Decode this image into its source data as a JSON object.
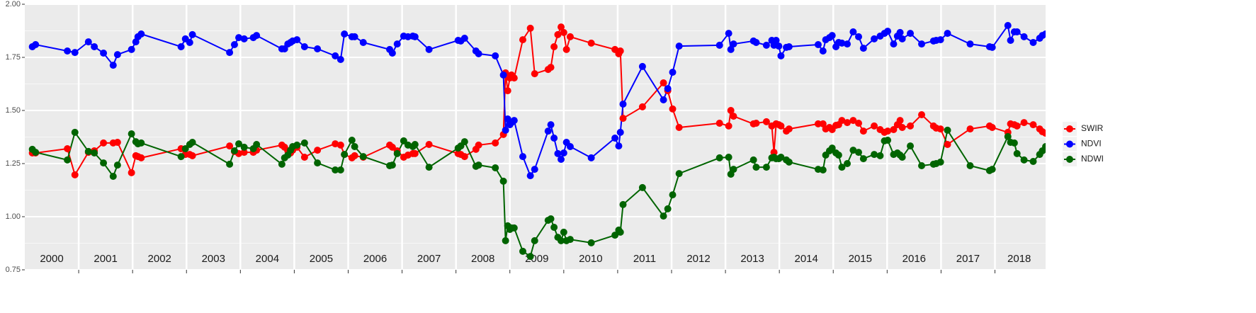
{
  "chart_data": {
    "type": "line",
    "markers": true,
    "grid": true,
    "legend": "right",
    "x": [
      2000.14,
      2000.2,
      2000.79,
      2000.93,
      2001.18,
      2001.29,
      2001.46,
      2001.64,
      2001.72,
      2001.98,
      2002.06,
      2002.1,
      2002.16,
      2002.9,
      2002.98,
      2003.06,
      2003.11,
      2003.8,
      2003.89,
      2003.97,
      2004.07,
      2004.24,
      2004.3,
      2004.77,
      2004.82,
      2004.88,
      2004.93,
      2004.97,
      2005.05,
      2005.19,
      2005.43,
      2005.76,
      2005.86,
      2005.93,
      2006.07,
      2006.12,
      2006.28,
      2006.77,
      2006.82,
      2006.91,
      2007.03,
      2007.11,
      2007.2,
      2007.24,
      2007.5,
      2008.04,
      2008.09,
      2008.16,
      2008.37,
      2008.42,
      2008.73,
      2008.88,
      2008.92,
      2008.96,
      2009.0,
      2009.03,
      2009.08,
      2009.24,
      2009.38,
      2009.46,
      2009.71,
      2009.76,
      2009.82,
      2009.89,
      2009.95,
      2010.0,
      2010.05,
      2010.12,
      2010.51,
      2010.95,
      2011.02,
      2011.05,
      2011.1,
      2011.46,
      2011.85,
      2011.93,
      2012.02,
      2012.14,
      2012.89,
      2013.06,
      2013.1,
      2013.15,
      2013.52,
      2013.57,
      2013.76,
      2013.86,
      2013.9,
      2013.94,
      2013.99,
      2014.03,
      2014.13,
      2014.18,
      2014.72,
      2014.81,
      2014.86,
      2014.93,
      2014.98,
      2015.05,
      2015.1,
      2015.16,
      2015.26,
      2015.37,
      2015.47,
      2015.56,
      2015.76,
      2015.87,
      2015.95,
      2016.01,
      2016.12,
      2016.19,
      2016.24,
      2016.28,
      2016.43,
      2016.64,
      2016.86,
      2016.91,
      2016.99,
      2017.12,
      2017.54,
      2017.9,
      2017.95,
      2018.24,
      2018.29,
      2018.36,
      2018.41,
      2018.54,
      2018.71,
      2018.83,
      2018.88,
      2018.94
    ],
    "series": [
      {
        "name": "SWIR",
        "color": "#ff0000",
        "values": [
          1.3,
          1.3,
          1.32,
          1.197,
          1.303,
          1.31,
          1.347,
          1.347,
          1.35,
          1.207,
          1.287,
          1.283,
          1.277,
          1.32,
          1.293,
          1.293,
          1.287,
          1.333,
          1.307,
          1.297,
          1.303,
          1.303,
          1.313,
          1.337,
          1.327,
          1.31,
          1.3,
          1.313,
          1.327,
          1.28,
          1.313,
          1.343,
          1.337,
          1.293,
          1.277,
          1.287,
          1.28,
          1.337,
          1.327,
          1.31,
          1.28,
          1.29,
          1.297,
          1.297,
          1.34,
          1.297,
          1.293,
          1.283,
          1.317,
          1.337,
          1.347,
          1.387,
          1.677,
          1.593,
          1.653,
          1.667,
          1.653,
          1.833,
          1.887,
          1.673,
          1.693,
          1.703,
          1.8,
          1.857,
          1.893,
          1.867,
          1.787,
          1.847,
          1.817,
          1.787,
          1.767,
          1.78,
          1.463,
          1.517,
          1.63,
          1.593,
          1.507,
          1.42,
          1.44,
          1.427,
          1.5,
          1.473,
          1.437,
          1.44,
          1.447,
          1.427,
          1.303,
          1.437,
          1.433,
          1.427,
          1.403,
          1.413,
          1.437,
          1.437,
          1.413,
          1.42,
          1.41,
          1.43,
          1.433,
          1.453,
          1.443,
          1.453,
          1.44,
          1.403,
          1.427,
          1.41,
          1.397,
          1.403,
          1.41,
          1.433,
          1.453,
          1.42,
          1.427,
          1.48,
          1.427,
          1.417,
          1.413,
          1.34,
          1.413,
          1.427,
          1.42,
          1.397,
          1.437,
          1.433,
          1.427,
          1.443,
          1.433,
          1.413,
          1.4,
          1.393
        ]
      },
      {
        "name": "NDVI",
        "color": "#0000ff",
        "values": [
          1.8,
          1.81,
          1.78,
          1.773,
          1.823,
          1.8,
          1.77,
          1.713,
          1.763,
          1.787,
          1.823,
          1.847,
          1.86,
          1.8,
          1.837,
          1.82,
          1.857,
          1.773,
          1.81,
          1.843,
          1.837,
          1.843,
          1.853,
          1.79,
          1.79,
          1.813,
          1.82,
          1.827,
          1.833,
          1.8,
          1.79,
          1.757,
          1.74,
          1.86,
          1.847,
          1.847,
          1.82,
          1.787,
          1.77,
          1.813,
          1.85,
          1.847,
          1.85,
          1.847,
          1.787,
          1.83,
          1.827,
          1.84,
          1.78,
          1.767,
          1.757,
          1.667,
          1.407,
          1.46,
          1.433,
          1.443,
          1.453,
          1.283,
          1.193,
          1.223,
          1.403,
          1.433,
          1.37,
          1.297,
          1.27,
          1.3,
          1.35,
          1.33,
          1.277,
          1.37,
          1.333,
          1.397,
          1.53,
          1.707,
          1.55,
          1.603,
          1.68,
          1.803,
          1.807,
          1.863,
          1.787,
          1.813,
          1.827,
          1.82,
          1.807,
          1.83,
          1.807,
          1.83,
          1.803,
          1.757,
          1.797,
          1.8,
          1.81,
          1.78,
          1.833,
          1.843,
          1.853,
          1.8,
          1.82,
          1.817,
          1.813,
          1.87,
          1.847,
          1.793,
          1.837,
          1.85,
          1.863,
          1.873,
          1.813,
          1.85,
          1.867,
          1.837,
          1.863,
          1.813,
          1.827,
          1.83,
          1.833,
          1.863,
          1.813,
          1.8,
          1.797,
          1.9,
          1.83,
          1.87,
          1.87,
          1.847,
          1.82,
          1.84,
          1.853,
          1.86
        ]
      },
      {
        "name": "NDWI",
        "color": "#006400",
        "values": [
          1.317,
          1.303,
          1.267,
          1.397,
          1.307,
          1.3,
          1.253,
          1.19,
          1.243,
          1.39,
          1.353,
          1.343,
          1.347,
          1.283,
          1.32,
          1.34,
          1.35,
          1.247,
          1.31,
          1.343,
          1.327,
          1.32,
          1.34,
          1.247,
          1.277,
          1.29,
          1.313,
          1.33,
          1.337,
          1.347,
          1.253,
          1.22,
          1.22,
          1.293,
          1.36,
          1.33,
          1.283,
          1.24,
          1.243,
          1.297,
          1.357,
          1.337,
          1.33,
          1.34,
          1.233,
          1.323,
          1.333,
          1.353,
          1.237,
          1.243,
          1.23,
          1.167,
          0.887,
          0.957,
          0.94,
          0.947,
          0.947,
          0.837,
          0.813,
          0.887,
          0.983,
          0.99,
          0.95,
          0.903,
          0.887,
          0.927,
          0.887,
          0.893,
          0.877,
          0.913,
          0.937,
          0.927,
          1.057,
          1.137,
          1.003,
          1.037,
          1.103,
          1.203,
          1.277,
          1.28,
          1.2,
          1.223,
          1.267,
          1.233,
          1.233,
          1.277,
          1.28,
          1.273,
          1.273,
          1.28,
          1.267,
          1.257,
          1.223,
          1.22,
          1.29,
          1.31,
          1.323,
          1.3,
          1.29,
          1.233,
          1.25,
          1.313,
          1.303,
          1.273,
          1.293,
          1.287,
          1.357,
          1.36,
          1.293,
          1.3,
          1.29,
          1.28,
          1.333,
          1.24,
          1.247,
          1.25,
          1.257,
          1.407,
          1.24,
          1.217,
          1.223,
          1.377,
          1.35,
          1.347,
          1.297,
          1.267,
          1.26,
          1.293,
          1.31,
          1.33
        ]
      }
    ],
    "xlim": [
      2000,
      2018.94
    ],
    "ylim": [
      0.75,
      2.0
    ],
    "yticks": [
      0.75,
      {
        "value": 1,
        "label": "1.00"
      },
      1.25,
      {
        "value": 1.5,
        "label": "1.50"
      },
      1.75,
      {
        "value": 2,
        "label": "2.00"
      }
    ],
    "yminor": [
      0.875,
      1.125,
      1.375,
      1.625,
      1.875
    ],
    "xgrid": [
      2001,
      2002,
      2003,
      2004,
      2005,
      2006,
      2007,
      2008,
      2009,
      2010,
      2011,
      2012,
      2013,
      2014,
      2015,
      2016,
      2017,
      2018
    ],
    "year_labels": [
      {
        "value": 2000.5,
        "label": "2000"
      },
      {
        "value": 2001.5,
        "label": "2001"
      },
      {
        "value": 2002.5,
        "label": "2002"
      },
      {
        "value": 2003.5,
        "label": "2003"
      },
      {
        "value": 2004.5,
        "label": "2004"
      },
      {
        "value": 2005.5,
        "label": "2005"
      },
      {
        "value": 2006.5,
        "label": "2006"
      },
      {
        "value": 2007.5,
        "label": "2007"
      },
      {
        "value": 2008.5,
        "label": "2008"
      },
      {
        "value": 2009.5,
        "label": "2009"
      },
      {
        "value": 2010.5,
        "label": "2010"
      },
      {
        "value": 2011.5,
        "label": "2011"
      },
      {
        "value": 2012.5,
        "label": "2012"
      },
      {
        "value": 2013.5,
        "label": "2013"
      },
      {
        "value": 2014.5,
        "label": "2014"
      },
      {
        "value": 2015.5,
        "label": "2015"
      },
      {
        "value": 2016.5,
        "label": "2016"
      },
      {
        "value": 2017.5,
        "label": "2017"
      },
      {
        "value": 2018.45,
        "label": "2018"
      }
    ]
  }
}
